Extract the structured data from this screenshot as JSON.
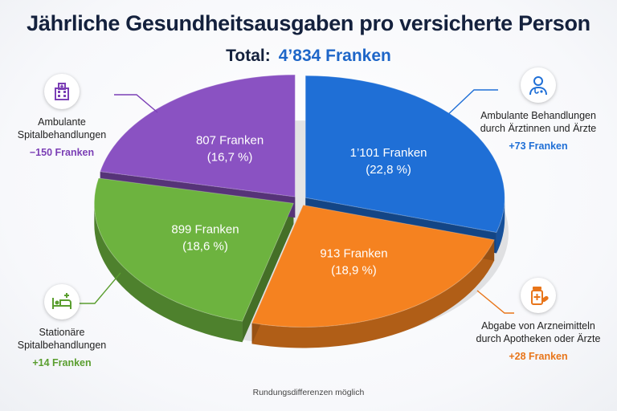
{
  "title": "Jährliche Gesundheitsausgaben pro versicherte Person",
  "total": {
    "label": "Total:",
    "value": "4’834 Franken"
  },
  "footnote": "Rundungsdifferenzen möglich",
  "chart_data": {
    "type": "pie",
    "title": "Jährliche Gesundheitsausgaben pro versicherte Person",
    "subtitle": "Total: 4’834 Franken",
    "unit": "Franken",
    "slices": [
      {
        "key": "ambulant_aerzte",
        "value": 1101,
        "percent": 22.8,
        "value_label": "1’101 Franken",
        "percent_label": "(22,8 %)",
        "color": "#1f6fd6",
        "label": "Ambulante Behandlungen durch Ärztinnen und Ärzte",
        "label_line1": "Ambulante Behandlungen",
        "label_line2": "durch Ärztinnen und Ärzte",
        "change": "+73 Franken",
        "change_color": "#1f6fd6",
        "icon": "doctor-icon"
      },
      {
        "key": "arzneimittel",
        "value": 913,
        "percent": 18.9,
        "value_label": "913 Franken",
        "percent_label": "(18,9 %)",
        "color": "#f58220",
        "label": "Abgabe von Arzneimitteln durch Apotheken oder Ärzte",
        "label_line1": "Abgabe von Arzneimitteln",
        "label_line2": "durch Apotheken oder Ärzte",
        "change": "+28 Franken",
        "change_color": "#e8751a",
        "icon": "medicine-icon"
      },
      {
        "key": "stationaer",
        "value": 899,
        "percent": 18.6,
        "value_label": "899 Franken",
        "percent_label": "(18,6 %)",
        "color": "#6db33f",
        "label": "Stationäre Spitalbehandlungen",
        "label_line1": "Stationäre",
        "label_line2": "Spitalbehandlungen",
        "change": "+14 Franken",
        "change_color": "#5a9e2f",
        "icon": "hospital-bed-icon"
      },
      {
        "key": "ambulant_spital",
        "value": 807,
        "percent": 16.7,
        "value_label": "807 Franken",
        "percent_label": "(16,7 %)",
        "color": "#8a52c2",
        "label": "Ambulante Spitalbehandlungen",
        "label_line1": "Ambulante",
        "label_line2": "Spitalbehandlungen",
        "change": "−150 Franken",
        "change_color": "#7b3fb5",
        "icon": "hospital-building-icon"
      }
    ]
  }
}
